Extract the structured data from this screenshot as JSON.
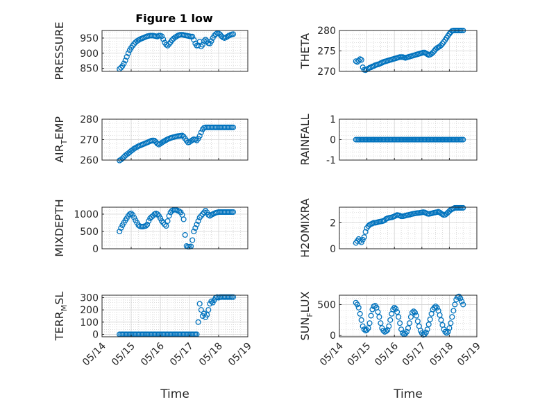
{
  "figure": {
    "title": "Figure 1 low",
    "marker_color": "#0072BD",
    "grid": true,
    "xtick_labels": [
      "05/14",
      "05/15",
      "05/16",
      "05/17",
      "05/18",
      "05/19"
    ]
  },
  "chart_data": [
    {
      "type": "scatter",
      "title": "Figure 1 low",
      "ylabel": "PRESSURE",
      "xlabel": "",
      "xlim": [
        0,
        5
      ],
      "ylim": [
        840,
        975
      ],
      "yticks": [
        850,
        900,
        950
      ],
      "ytick_labels": [
        "850",
        "900",
        "950"
      ],
      "x": [
        0.6,
        0.65,
        0.7,
        0.75,
        0.8,
        0.85,
        0.9,
        0.95,
        1.0,
        1.05,
        1.1,
        1.15,
        1.2,
        1.25,
        1.3,
        1.35,
        1.4,
        1.45,
        1.5,
        1.55,
        1.6,
        1.65,
        1.7,
        1.75,
        1.8,
        1.85,
        1.9,
        1.95,
        2.0,
        2.05,
        2.1,
        2.15,
        2.2,
        2.25,
        2.3,
        2.35,
        2.4,
        2.45,
        2.5,
        2.55,
        2.6,
        2.65,
        2.7,
        2.75,
        2.8,
        2.85,
        2.9,
        2.95,
        3.0,
        3.05,
        3.1,
        3.15,
        3.2,
        3.25,
        3.3,
        3.35,
        3.4,
        3.45,
        3.5,
        3.55,
        3.6,
        3.65,
        3.7,
        3.75,
        3.8,
        3.85,
        3.9,
        3.95,
        4.0,
        4.05,
        4.1,
        4.15,
        4.2,
        4.25,
        4.3,
        4.35,
        4.4,
        4.45,
        4.5
      ],
      "y": [
        848,
        852,
        858,
        866,
        876,
        888,
        900,
        910,
        918,
        925,
        931,
        936,
        940,
        943,
        946,
        948,
        950,
        952,
        954,
        956,
        957,
        958,
        958,
        958,
        957,
        956,
        955,
        958,
        958,
        956,
        946,
        935,
        928,
        925,
        930,
        936,
        943,
        948,
        952,
        955,
        958,
        960,
        961,
        961,
        960,
        959,
        958,
        957,
        956,
        955,
        955,
        944,
        932,
        925,
        926,
        938,
        922,
        928,
        940,
        945,
        940,
        933,
        932,
        940,
        950,
        958,
        963,
        966,
        965,
        962,
        956,
        952,
        950,
        952,
        955,
        958,
        960,
        962,
        963
      ]
    },
    {
      "type": "scatter",
      "ylabel": "THETA",
      "xlabel": "",
      "xlim": [
        0,
        5
      ],
      "ylim": [
        270,
        280
      ],
      "yticks": [
        270,
        275,
        280
      ],
      "ytick_labels": [
        "270",
        "275",
        "280"
      ],
      "x": [
        0.6,
        0.65,
        0.7,
        0.75,
        0.8,
        0.85,
        0.9,
        0.95,
        1.0,
        1.05,
        1.1,
        1.15,
        1.2,
        1.25,
        1.3,
        1.35,
        1.4,
        1.45,
        1.5,
        1.55,
        1.6,
        1.65,
        1.7,
        1.75,
        1.8,
        1.85,
        1.9,
        1.95,
        2.0,
        2.05,
        2.1,
        2.15,
        2.2,
        2.25,
        2.3,
        2.35,
        2.4,
        2.45,
        2.5,
        2.55,
        2.6,
        2.65,
        2.7,
        2.75,
        2.8,
        2.85,
        2.9,
        2.95,
        3.0,
        3.05,
        3.1,
        3.15,
        3.2,
        3.25,
        3.3,
        3.35,
        3.4,
        3.45,
        3.5,
        3.55,
        3.6,
        3.65,
        3.7,
        3.75,
        3.8,
        3.85,
        3.9,
        3.95,
        4.0,
        4.05,
        4.1,
        4.15,
        4.2,
        4.25,
        4.3,
        4.35,
        4.4,
        4.45,
        4.5
      ],
      "y": [
        272.5,
        272.3,
        272.6,
        273.0,
        272.8,
        271.0,
        270.4,
        270.3,
        270.5,
        270.7,
        270.9,
        271.0,
        271.2,
        271.3,
        271.5,
        271.6,
        271.7,
        271.8,
        272.0,
        272.1,
        272.3,
        272.4,
        272.5,
        272.6,
        272.7,
        272.8,
        272.9,
        273.0,
        273.1,
        273.2,
        273.3,
        273.4,
        273.5,
        273.5,
        273.5,
        273.4,
        273.3,
        273.4,
        273.5,
        273.6,
        273.7,
        273.8,
        273.9,
        274.0,
        274.1,
        274.2,
        274.3,
        274.4,
        274.5,
        274.6,
        274.6,
        274.4,
        274.2,
        274.0,
        274.1,
        274.3,
        274.6,
        275.0,
        275.4,
        275.7,
        275.9,
        276.1,
        276.4,
        276.8,
        277.2,
        277.7,
        278.2,
        278.7,
        279.2,
        279.6,
        279.9,
        280.0,
        280.0,
        280.0,
        280.0,
        280.0,
        280.0,
        280.0,
        280.0
      ]
    },
    {
      "type": "scatter",
      "ylabel": "AIR_TEMP",
      "xlabel": "",
      "xlim": [
        0,
        5
      ],
      "ylim": [
        260,
        280
      ],
      "yticks": [
        260,
        270,
        280
      ],
      "ytick_labels": [
        "260",
        "270",
        "280"
      ],
      "x": [
        0.6,
        0.65,
        0.7,
        0.75,
        0.8,
        0.85,
        0.9,
        0.95,
        1.0,
        1.05,
        1.1,
        1.15,
        1.2,
        1.25,
        1.3,
        1.35,
        1.4,
        1.45,
        1.5,
        1.55,
        1.6,
        1.65,
        1.7,
        1.75,
        1.8,
        1.85,
        1.9,
        1.95,
        2.0,
        2.05,
        2.1,
        2.15,
        2.2,
        2.25,
        2.3,
        2.35,
        2.4,
        2.45,
        2.5,
        2.55,
        2.6,
        2.65,
        2.7,
        2.75,
        2.8,
        2.85,
        2.9,
        2.95,
        3.0,
        3.05,
        3.1,
        3.15,
        3.2,
        3.25,
        3.3,
        3.35,
        3.4,
        3.45,
        3.5,
        3.55,
        3.6,
        3.65,
        3.7,
        3.75,
        3.8,
        3.85,
        3.9,
        3.95,
        4.0,
        4.05,
        4.1,
        4.15,
        4.2,
        4.25,
        4.3,
        4.35,
        4.4,
        4.45,
        4.5
      ],
      "y": [
        259.8,
        260.2,
        260.8,
        261.5,
        262.2,
        262.8,
        263.3,
        263.9,
        264.5,
        265.0,
        265.6,
        266.0,
        266.4,
        266.8,
        267.1,
        267.4,
        267.7,
        268.0,
        268.3,
        268.6,
        268.9,
        269.2,
        269.5,
        269.6,
        269.5,
        268.8,
        268.0,
        267.6,
        268.0,
        268.5,
        269.0,
        269.4,
        269.8,
        270.2,
        270.5,
        270.8,
        271.0,
        271.2,
        271.4,
        271.6,
        271.7,
        271.8,
        271.9,
        272.0,
        271.5,
        270.5,
        269.5,
        268.6,
        268.8,
        269.3,
        269.8,
        270.2,
        270.0,
        269.6,
        270.5,
        271.8,
        273.5,
        275.0,
        275.8,
        276.0,
        276.0,
        276.0,
        276.0,
        276.0,
        276.0,
        276.0,
        276.0,
        276.0,
        276.0,
        276.0,
        276.0,
        276.0,
        276.0,
        276.0,
        276.0,
        276.0,
        276.0,
        276.0,
        276.0
      ]
    },
    {
      "type": "scatter",
      "ylabel": "RAINFALL",
      "xlabel": "",
      "xlim": [
        0,
        5
      ],
      "ylim": [
        -1,
        1
      ],
      "yticks": [
        -1,
        0,
        1
      ],
      "ytick_labels": [
        "-1",
        "0",
        "1"
      ],
      "x": [
        0.6,
        0.65,
        0.7,
        0.75,
        0.8,
        0.85,
        0.9,
        0.95,
        1.0,
        1.05,
        1.1,
        1.15,
        1.2,
        1.25,
        1.3,
        1.35,
        1.4,
        1.45,
        1.5,
        1.55,
        1.6,
        1.65,
        1.7,
        1.75,
        1.8,
        1.85,
        1.9,
        1.95,
        2.0,
        2.05,
        2.1,
        2.15,
        2.2,
        2.25,
        2.3,
        2.35,
        2.4,
        2.45,
        2.5,
        2.55,
        2.6,
        2.65,
        2.7,
        2.75,
        2.8,
        2.85,
        2.9,
        2.95,
        3.0,
        3.05,
        3.1,
        3.15,
        3.2,
        3.25,
        3.3,
        3.35,
        3.4,
        3.45,
        3.5,
        3.55,
        3.6,
        3.65,
        3.7,
        3.75,
        3.8,
        3.85,
        3.9,
        3.95,
        4.0,
        4.05,
        4.1,
        4.15,
        4.2,
        4.25,
        4.3,
        4.35,
        4.4,
        4.45,
        4.5
      ],
      "y": [
        0,
        0,
        0,
        0,
        0,
        0,
        0,
        0,
        0,
        0,
        0,
        0,
        0,
        0,
        0,
        0,
        0,
        0,
        0,
        0,
        0,
        0,
        0,
        0,
        0,
        0,
        0,
        0,
        0,
        0,
        0,
        0,
        0,
        0,
        0,
        0,
        0,
        0,
        0,
        0,
        0,
        0,
        0,
        0,
        0,
        0,
        0,
        0,
        0,
        0,
        0,
        0,
        0,
        0,
        0,
        0,
        0,
        0,
        0,
        0,
        0,
        0,
        0,
        0,
        0,
        0,
        0,
        0,
        0,
        0,
        0,
        0,
        0,
        0,
        0,
        0,
        0,
        0,
        0
      ]
    },
    {
      "type": "scatter",
      "ylabel": "MIXDEPTH",
      "xlabel": "",
      "xlim": [
        0,
        5
      ],
      "ylim": [
        0,
        1200
      ],
      "yticks": [
        0,
        500,
        1000
      ],
      "ytick_labels": [
        "0",
        "500",
        "1000"
      ],
      "x": [
        0.6,
        0.65,
        0.7,
        0.75,
        0.8,
        0.85,
        0.9,
        0.95,
        1.0,
        1.05,
        1.1,
        1.15,
        1.2,
        1.25,
        1.3,
        1.35,
        1.4,
        1.45,
        1.5,
        1.55,
        1.6,
        1.65,
        1.7,
        1.75,
        1.8,
        1.85,
        1.9,
        1.95,
        2.0,
        2.05,
        2.1,
        2.15,
        2.2,
        2.25,
        2.3,
        2.35,
        2.4,
        2.45,
        2.5,
        2.55,
        2.6,
        2.65,
        2.7,
        2.75,
        2.8,
        2.85,
        2.9,
        2.95,
        3.0,
        3.05,
        3.1,
        3.15,
        3.2,
        3.25,
        3.3,
        3.35,
        3.4,
        3.45,
        3.5,
        3.55,
        3.6,
        3.65,
        3.7,
        3.75,
        3.8,
        3.85,
        3.9,
        3.95,
        4.0,
        4.05,
        4.1,
        4.15,
        4.2,
        4.25,
        4.3,
        4.35,
        4.4,
        4.45,
        4.5
      ],
      "y": [
        500,
        600,
        680,
        750,
        820,
        880,
        950,
        1000,
        1020,
        980,
        900,
        820,
        750,
        680,
        650,
        640,
        640,
        650,
        660,
        700,
        800,
        880,
        920,
        950,
        1000,
        1020,
        1000,
        950,
        880,
        800,
        750,
        700,
        660,
        800,
        950,
        1050,
        1100,
        1120,
        1130,
        1120,
        1100,
        1080,
        1050,
        980,
        850,
        400,
        80,
        60,
        60,
        70,
        250,
        500,
        600,
        700,
        800,
        900,
        950,
        1000,
        1050,
        1100,
        1050,
        980,
        950,
        980,
        1000,
        1020,
        1040,
        1050,
        1060,
        1060,
        1060,
        1060,
        1060,
        1060,
        1060,
        1060,
        1060,
        1060,
        1060
      ]
    },
    {
      "type": "scatter",
      "ylabel": "H2OMIXRA",
      "xlabel": "",
      "xlim": [
        0,
        5
      ],
      "ylim": [
        0,
        3.2
      ],
      "yticks": [
        0,
        2
      ],
      "ytick_labels": [
        "0",
        "2"
      ],
      "x": [
        0.6,
        0.65,
        0.7,
        0.75,
        0.8,
        0.85,
        0.9,
        0.95,
        1.0,
        1.05,
        1.1,
        1.15,
        1.2,
        1.25,
        1.3,
        1.35,
        1.4,
        1.45,
        1.5,
        1.55,
        1.6,
        1.65,
        1.7,
        1.75,
        1.8,
        1.85,
        1.9,
        1.95,
        2.0,
        2.05,
        2.1,
        2.15,
        2.2,
        2.25,
        2.3,
        2.35,
        2.4,
        2.45,
        2.5,
        2.55,
        2.6,
        2.65,
        2.7,
        2.75,
        2.8,
        2.85,
        2.9,
        2.95,
        3.0,
        3.05,
        3.1,
        3.15,
        3.2,
        3.25,
        3.3,
        3.35,
        3.4,
        3.45,
        3.5,
        3.55,
        3.6,
        3.65,
        3.7,
        3.75,
        3.8,
        3.85,
        3.9,
        3.95,
        4.0,
        4.05,
        4.1,
        4.15,
        4.2,
        4.25,
        4.3,
        4.35,
        4.4,
        4.45,
        4.5
      ],
      "y": [
        0.45,
        0.6,
        0.75,
        0.6,
        0.5,
        0.7,
        0.9,
        1.3,
        1.6,
        1.75,
        1.85,
        1.9,
        1.95,
        2.0,
        2.0,
        2.02,
        2.05,
        2.08,
        2.1,
        2.12,
        2.15,
        2.2,
        2.3,
        2.35,
        2.38,
        2.4,
        2.42,
        2.45,
        2.5,
        2.55,
        2.6,
        2.58,
        2.55,
        2.5,
        2.5,
        2.52,
        2.55,
        2.58,
        2.6,
        2.62,
        2.65,
        2.68,
        2.7,
        2.72,
        2.74,
        2.75,
        2.76,
        2.78,
        2.8,
        2.82,
        2.8,
        2.75,
        2.7,
        2.68,
        2.7,
        2.72,
        2.75,
        2.78,
        2.8,
        2.82,
        2.85,
        2.8,
        2.72,
        2.65,
        2.6,
        2.62,
        2.7,
        2.8,
        2.9,
        3.0,
        3.05,
        3.1,
        3.15,
        3.15,
        3.15,
        3.15,
        3.15,
        3.15,
        3.15
      ]
    },
    {
      "type": "scatter",
      "ylabel": "TERR_MSL",
      "xlabel": "Time",
      "xlim": [
        0,
        5
      ],
      "ylim": [
        -20,
        320
      ],
      "yticks": [
        0,
        100,
        200,
        300
      ],
      "ytick_labels": [
        "0",
        "100",
        "200",
        "300"
      ],
      "x": [
        0.6,
        0.65,
        0.7,
        0.75,
        0.8,
        0.85,
        0.9,
        0.95,
        1.0,
        1.05,
        1.1,
        1.15,
        1.2,
        1.25,
        1.3,
        1.35,
        1.4,
        1.45,
        1.5,
        1.55,
        1.6,
        1.65,
        1.7,
        1.75,
        1.8,
        1.85,
        1.9,
        1.95,
        2.0,
        2.05,
        2.1,
        2.15,
        2.2,
        2.25,
        2.3,
        2.35,
        2.4,
        2.45,
        2.5,
        2.55,
        2.6,
        2.65,
        2.7,
        2.75,
        2.8,
        2.85,
        2.9,
        2.95,
        3.0,
        3.05,
        3.1,
        3.15,
        3.2,
        3.25,
        3.3,
        3.35,
        3.4,
        3.45,
        3.5,
        3.55,
        3.6,
        3.65,
        3.7,
        3.75,
        3.8,
        3.85,
        3.9,
        3.95,
        4.0,
        4.05,
        4.1,
        4.15,
        4.2,
        4.25,
        4.3,
        4.35,
        4.4,
        4.45,
        4.5
      ],
      "y": [
        0,
        0,
        0,
        0,
        0,
        0,
        0,
        0,
        0,
        0,
        0,
        0,
        0,
        0,
        0,
        0,
        0,
        0,
        0,
        0,
        0,
        0,
        0,
        0,
        0,
        0,
        0,
        0,
        0,
        0,
        0,
        0,
        0,
        0,
        0,
        0,
        0,
        0,
        0,
        0,
        0,
        0,
        0,
        0,
        0,
        0,
        0,
        0,
        0,
        0,
        0,
        0,
        0,
        0,
        100,
        250,
        200,
        150,
        170,
        140,
        160,
        200,
        250,
        270,
        260,
        280,
        300,
        305,
        300,
        305,
        305,
        305,
        305,
        305,
        305,
        305,
        305,
        305,
        305
      ]
    },
    {
      "type": "scatter",
      "ylabel": "SUN_FLUX",
      "xlabel": "Time",
      "xlim": [
        0,
        5
      ],
      "ylim": [
        -20,
        650
      ],
      "yticks": [
        0,
        500
      ],
      "ytick_labels": [
        "0",
        "500"
      ],
      "x": [
        0.6,
        0.65,
        0.7,
        0.75,
        0.8,
        0.85,
        0.9,
        0.95,
        1.0,
        1.05,
        1.1,
        1.15,
        1.2,
        1.25,
        1.3,
        1.35,
        1.4,
        1.45,
        1.5,
        1.55,
        1.6,
        1.65,
        1.7,
        1.75,
        1.8,
        1.85,
        1.9,
        1.95,
        2.0,
        2.05,
        2.1,
        2.15,
        2.2,
        2.25,
        2.3,
        2.35,
        2.4,
        2.45,
        2.5,
        2.55,
        2.6,
        2.65,
        2.7,
        2.75,
        2.8,
        2.85,
        2.9,
        2.95,
        3.0,
        3.05,
        3.1,
        3.15,
        3.2,
        3.25,
        3.3,
        3.35,
        3.4,
        3.45,
        3.5,
        3.55,
        3.6,
        3.65,
        3.7,
        3.75,
        3.8,
        3.85,
        3.9,
        3.95,
        4.0,
        4.05,
        4.1,
        4.15,
        4.2,
        4.25,
        4.3,
        4.35,
        4.4,
        4.45,
        4.5
      ],
      "y": [
        530,
        500,
        450,
        350,
        250,
        150,
        100,
        80,
        90,
        120,
        200,
        320,
        420,
        470,
        480,
        450,
        380,
        300,
        200,
        120,
        80,
        60,
        70,
        90,
        150,
        250,
        350,
        420,
        450,
        430,
        380,
        300,
        200,
        100,
        40,
        20,
        30,
        60,
        120,
        200,
        300,
        370,
        390,
        370,
        320,
        230,
        150,
        80,
        40,
        10,
        20,
        50,
        100,
        180,
        260,
        350,
        420,
        450,
        470,
        450,
        400,
        330,
        250,
        170,
        100,
        60,
        40,
        60,
        120,
        200,
        300,
        400,
        500,
        580,
        620,
        630,
        600,
        550,
        500
      ]
    }
  ]
}
